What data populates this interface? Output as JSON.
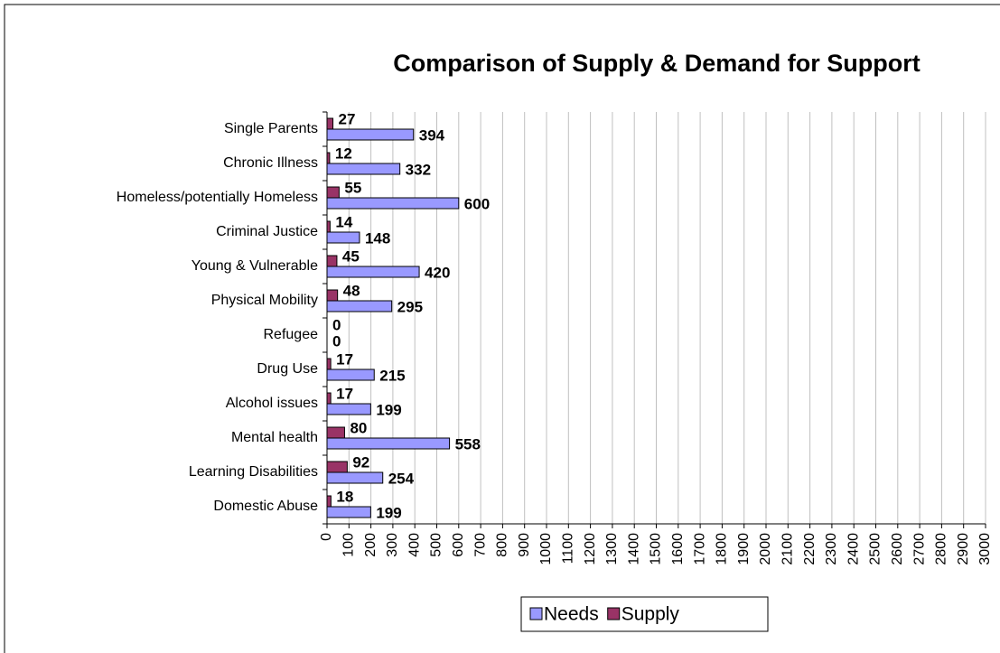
{
  "chart_data": {
    "type": "bar",
    "orientation": "horizontal",
    "title": "Comparison of Supply & Demand for Support",
    "categories": [
      "Single Parents",
      "Chronic Illness",
      "Homeless/potentially Homeless",
      "Criminal Justice",
      "Young & Vulnerable",
      "Physical Mobility",
      "Refugee",
      "Drug Use",
      "Alcohol issues",
      "Mental health",
      "Learning Disabilities",
      "Domestic Abuse"
    ],
    "series": [
      {
        "name": "Needs",
        "color": "#9999ff",
        "values": [
          394,
          332,
          600,
          148,
          420,
          295,
          0,
          215,
          199,
          558,
          254,
          199
        ]
      },
      {
        "name": "Supply",
        "color": "#993366",
        "values": [
          27,
          12,
          55,
          14,
          45,
          48,
          0,
          17,
          17,
          80,
          92,
          18
        ]
      }
    ],
    "xlim": [
      0,
      3000
    ],
    "xticks": [
      0,
      100,
      200,
      300,
      400,
      500,
      600,
      700,
      800,
      900,
      1000,
      1100,
      1200,
      1300,
      1400,
      1500,
      1600,
      1700,
      1800,
      1900,
      2000,
      2100,
      2200,
      2300,
      2400,
      2500,
      2600,
      2700,
      2800,
      2900,
      3000
    ],
    "grid": true,
    "legend": "bottom"
  }
}
